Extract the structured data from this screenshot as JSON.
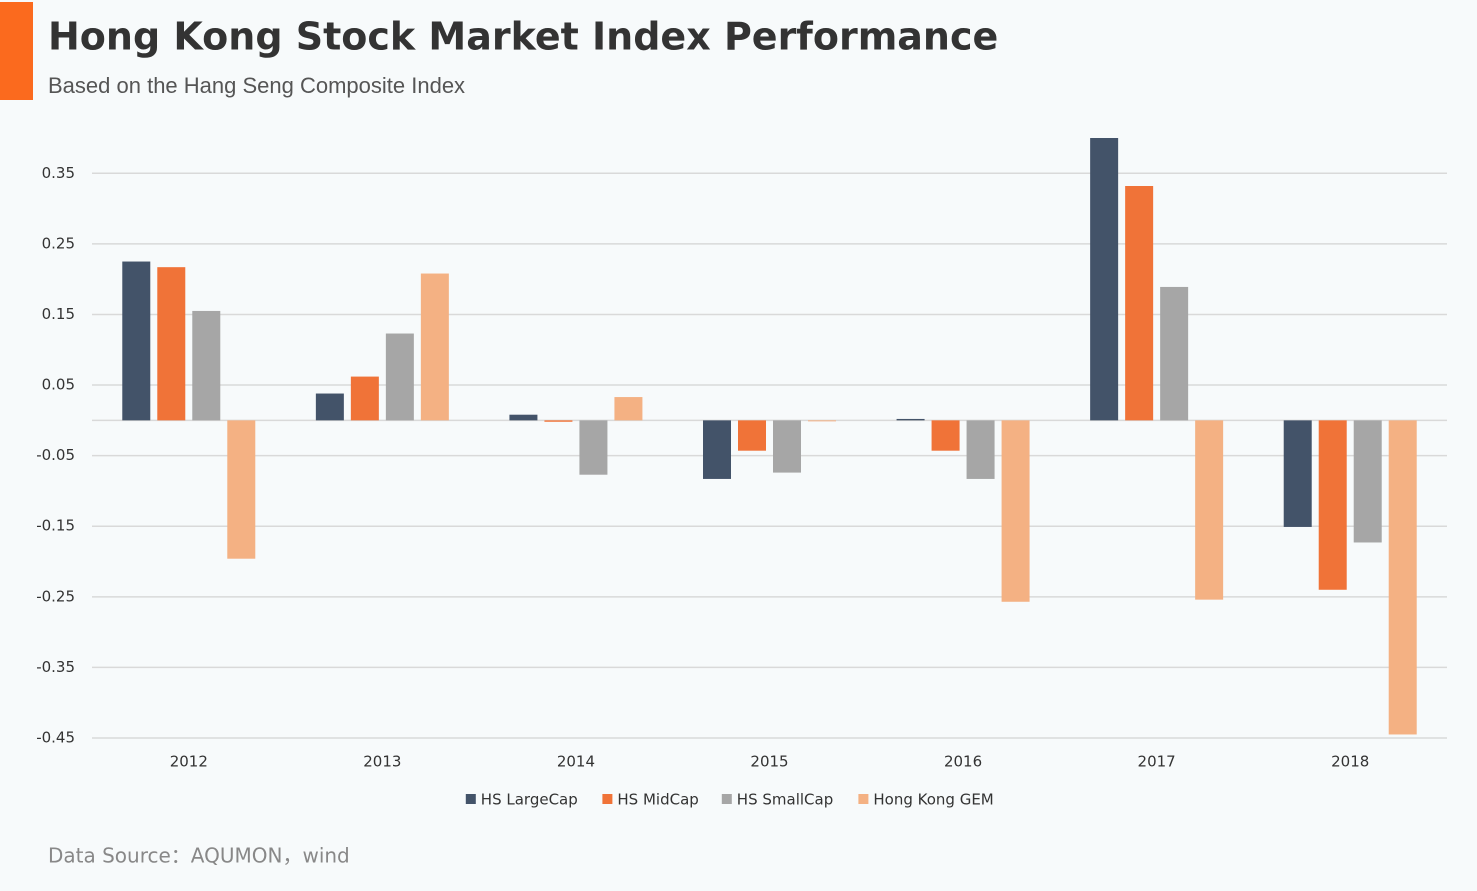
{
  "title": "Hong Kong Stock Market Index Performance",
  "subtitle": "Based on the Hang Seng Composite Index",
  "source": "Data Source：AQUMON，wind",
  "chart_data": {
    "type": "bar",
    "categories": [
      "2012",
      "2013",
      "2014",
      "2015",
      "2016",
      "2017",
      "2018"
    ],
    "series": [
      {
        "name": "HS LargeCap",
        "color": "#435369",
        "values": [
          0.225,
          0.038,
          0.008,
          -0.083,
          0.002,
          0.4,
          -0.151
        ]
      },
      {
        "name": "HS MidCap",
        "color": "#f07338",
        "values": [
          0.217,
          0.062,
          -0.002,
          -0.043,
          -0.043,
          0.332,
          -0.24
        ]
      },
      {
        "name": "HS SmallCap",
        "color": "#a6a6a6",
        "values": [
          0.155,
          0.123,
          -0.077,
          -0.074,
          -0.083,
          0.189,
          -0.173
        ]
      },
      {
        "name": "Hong Kong GEM",
        "color": "#f4b183",
        "values": [
          -0.196,
          0.208,
          0.033,
          -0.001,
          -0.257,
          -0.254,
          -0.445
        ]
      }
    ],
    "ylim": [
      -0.45,
      0.4
    ],
    "yticks": [
      0.35,
      0.25,
      0.15,
      0.05,
      -0.05,
      -0.15,
      -0.25,
      -0.35,
      -0.45
    ],
    "grid": true,
    "legend": "bottom"
  }
}
